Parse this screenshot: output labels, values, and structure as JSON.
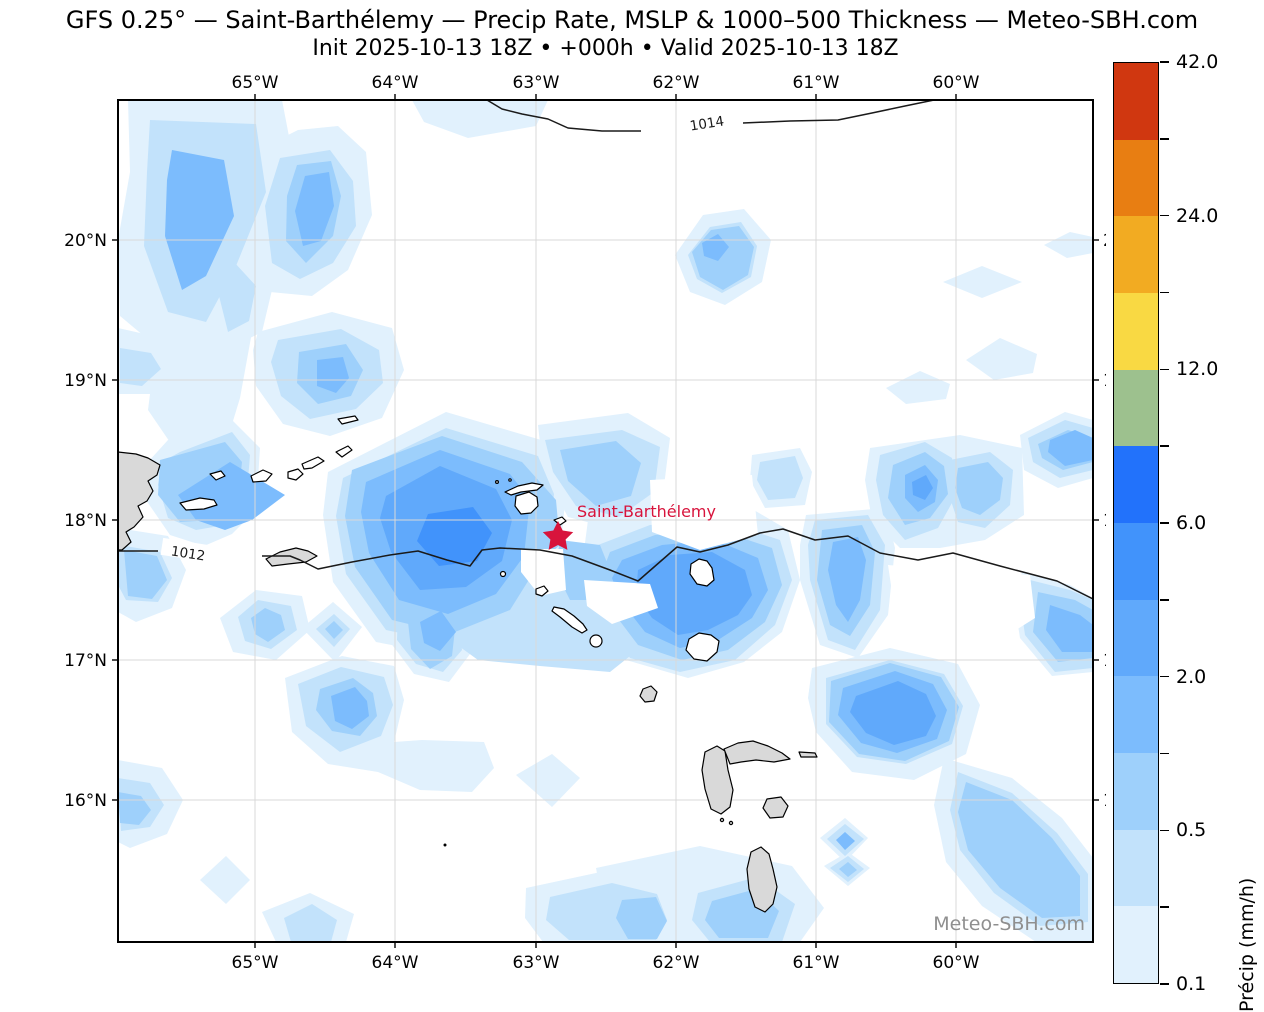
{
  "title": "GFS 0.25° — Saint-Barthélemy — Precip Rate, MSLP & 1000–500 Thickness — Meteo-SBH.com",
  "subtitle": "Init 2025-10-13 18Z • +000h • Valid 2025-10-13 18Z",
  "map": {
    "x_tick_labels": [
      "65°W",
      "64°W",
      "63°W",
      "62°W",
      "61°W",
      "60°W"
    ],
    "y_tick_labels": [
      "20°N",
      "19°N",
      "18°N",
      "17°N",
      "16°N"
    ],
    "isobar_labels": [
      "1014",
      "1012"
    ],
    "station": {
      "label": "Saint-Barthélemy",
      "marker": "star-icon",
      "color": "#d8143c"
    },
    "watermark": "Meteo-SBH.com",
    "land_color": "#d9d9d9",
    "grid_color": "#d9d9d9",
    "isobar_color": "#1a1a1a"
  },
  "colorbar": {
    "label": "Précip (mm/h)",
    "unit": "mm/h",
    "labeled_levels": [
      "42.0",
      "24.0",
      "12.0",
      "6.0",
      "2.0",
      "0.5",
      "0.1"
    ],
    "tick_labels": [
      {
        "pos": 0,
        "label": "42.0"
      },
      {
        "pos": 2,
        "label": "24.0"
      },
      {
        "pos": 4,
        "label": "12.0"
      },
      {
        "pos": 6,
        "label": "6.0"
      },
      {
        "pos": 8,
        "label": "2.0"
      },
      {
        "pos": 10,
        "label": "0.5"
      },
      {
        "pos": 12,
        "label": "0.1"
      }
    ],
    "segments_top_to_bottom": [
      "#d03710",
      "#e87e12",
      "#f2ab22",
      "#f9d943",
      "#9dc18e",
      "#2272fb",
      "#4193fb",
      "#60a9fb",
      "#7cbcfd",
      "#9ed0fb",
      "#c2e2fb",
      "#e1f1fd"
    ]
  }
}
